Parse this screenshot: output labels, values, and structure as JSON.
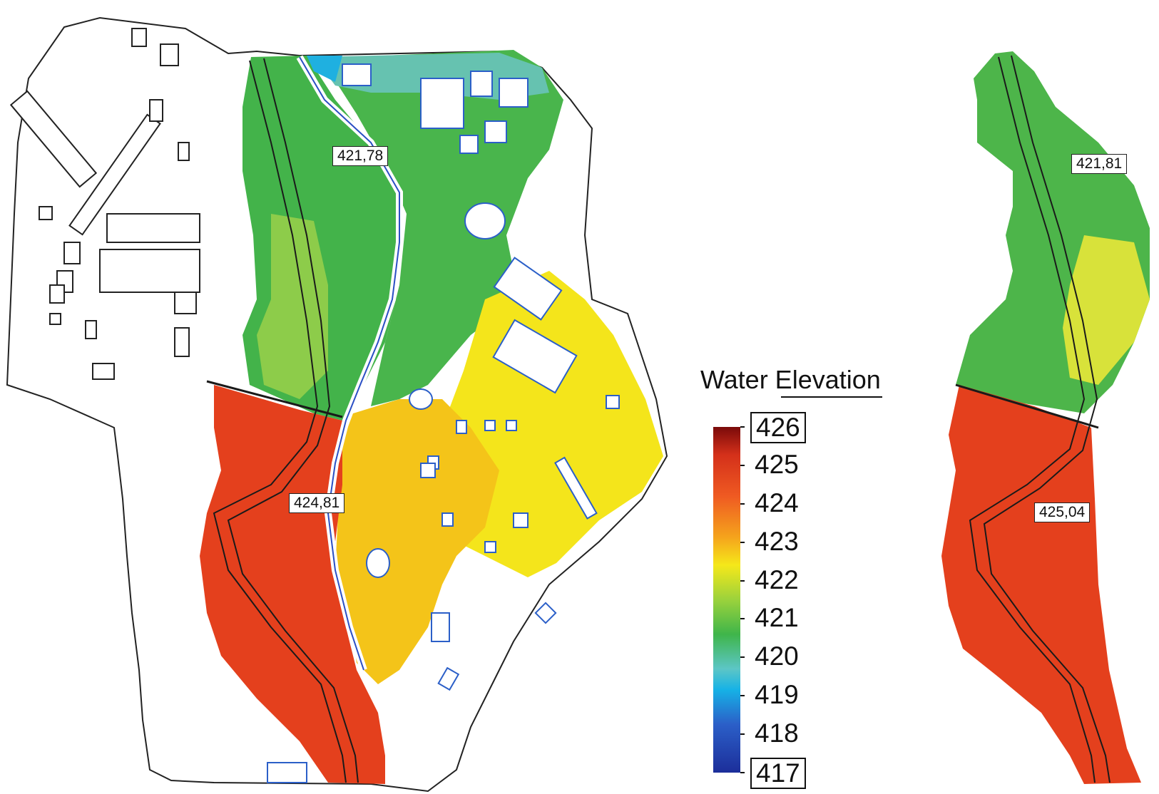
{
  "legend": {
    "title": "Water Elevation",
    "ticks": [
      "426",
      "425",
      "424",
      "423",
      "422",
      "421",
      "420",
      "419",
      "418",
      "417"
    ],
    "boxed_ticks": [
      "426",
      "417"
    ],
    "min": 417,
    "max": 426,
    "colors": [
      "#7a0a0a",
      "#d4301a",
      "#ef5a22",
      "#f5a41c",
      "#f5e81a",
      "#9bd23c",
      "#3fb54a",
      "#5cc6c6",
      "#16b2e6",
      "#2b5fc8",
      "#1c2e9a"
    ]
  },
  "map_left": {
    "labels": [
      {
        "name": "upstream-elevation-label",
        "text": "421,78"
      },
      {
        "name": "downstream-elevation-label",
        "text": "424,81"
      }
    ]
  },
  "map_right": {
    "labels": [
      {
        "name": "upstream-elevation-label",
        "text": "421,81"
      },
      {
        "name": "downstream-elevation-label",
        "text": "425,04"
      }
    ]
  }
}
